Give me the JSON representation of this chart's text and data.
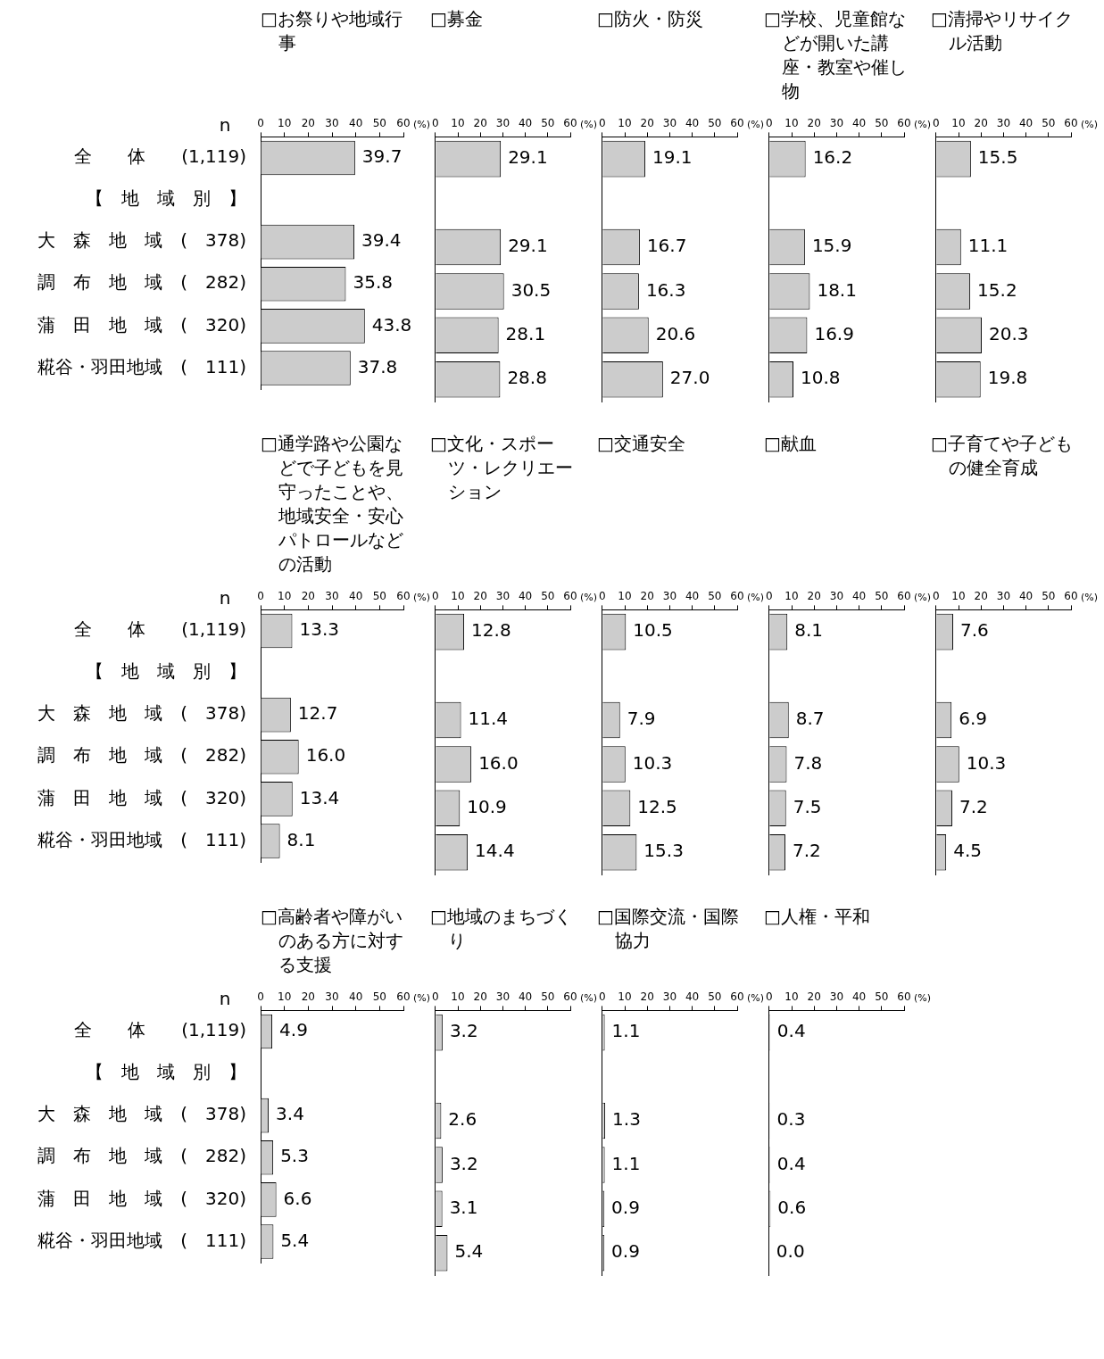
{
  "chart_data": [
    {
      "type": "bar",
      "orientation": "horizontal",
      "title": "□お祭りや地域行事",
      "xlabel": "(%)",
      "annotations": [
        "n"
      ],
      "categories": [
        "全　　体　　(1,119)",
        "【　地　域　別　】",
        "大　森　地　域　(　378)",
        "調　布　地　域　(　282)",
        "蒲　田　地　域　(　320)",
        "糀谷・羽田地域　(　111)"
      ],
      "values": [
        39.7,
        null,
        39.4,
        35.8,
        43.8,
        37.8
      ],
      "value_labels": [
        "39.7",
        null,
        "39.4",
        "35.8",
        "43.8",
        "37.8"
      ],
      "color": "#cccccc",
      "xlim": [
        0,
        60
      ],
      "xticks": [
        0,
        10,
        20,
        30,
        40,
        50,
        60
      ]
    },
    {
      "type": "bar",
      "orientation": "horizontal",
      "title": "□募金",
      "xlabel": "(%)",
      "tick_labels": "x",
      "values": [
        29.1,
        null,
        29.1,
        30.5,
        28.1,
        28.8
      ],
      "value_labels": [
        "29.1",
        null,
        "29.1",
        "30.5",
        "28.1",
        "28.8"
      ],
      "color": "#cccccc",
      "xlim": [
        0,
        60
      ],
      "xticks": [
        0,
        10,
        20,
        30,
        40,
        50,
        60
      ]
    },
    {
      "type": "bar",
      "orientation": "horizontal",
      "title": "□防火・防災",
      "xlabel": "(%)",
      "tick_labels": "x",
      "values": [
        19.1,
        null,
        16.7,
        16.3,
        20.6,
        27.0
      ],
      "value_labels": [
        "19.1",
        null,
        "16.7",
        "16.3",
        "20.6",
        "27.0"
      ],
      "color": "#cccccc",
      "xlim": [
        0,
        60
      ],
      "xticks": [
        0,
        10,
        20,
        30,
        40,
        50,
        60
      ]
    },
    {
      "type": "bar",
      "orientation": "horizontal",
      "title": "□学校、児童館などが開いた講座・教室や催し物",
      "xlabel": "(%)",
      "tick_labels": "x",
      "values": [
        16.2,
        null,
        15.9,
        18.1,
        16.9,
        10.8
      ],
      "value_labels": [
        "16.2",
        null,
        "15.9",
        "18.1",
        "16.9",
        "10.8"
      ],
      "color": "#cccccc",
      "xlim": [
        0,
        60
      ],
      "xticks": [
        0,
        10,
        20,
        30,
        40,
        50,
        60
      ]
    },
    {
      "type": "bar",
      "orientation": "horizontal",
      "title": "□清掃やリサイクル活動",
      "xlabel": "(%)",
      "tick_labels": "x",
      "values": [
        15.5,
        null,
        11.1,
        15.2,
        20.3,
        19.8
      ],
      "value_labels": [
        "15.5",
        null,
        "11.1",
        "15.2",
        "20.3",
        "19.8"
      ],
      "color": "#cccccc",
      "xlim": [
        0,
        60
      ],
      "xticks": [
        0,
        10,
        20,
        30,
        40,
        50,
        60
      ]
    },
    {
      "type": "bar",
      "orientation": "horizontal",
      "title": "□通学路や公園などで子どもを見守ったことや、地域安全・安心パトロールなどの活動",
      "xlabel": "(%)",
      "annotations": [
        "n"
      ],
      "categories": [
        "全　　体　　(1,119)",
        "【　地　域　別　】",
        "大　森　地　域　(　378)",
        "調　布　地　域　(　282)",
        "蒲　田　地　域　(　320)",
        "糀谷・羽田地域　(　111)"
      ],
      "values": [
        13.3,
        null,
        12.7,
        16.0,
        13.4,
        8.1
      ],
      "value_labels": [
        "13.3",
        null,
        "12.7",
        "16.0",
        "13.4",
        "8.1"
      ],
      "color": "#cccccc",
      "xlim": [
        0,
        60
      ],
      "xticks": [
        0,
        10,
        20,
        30,
        40,
        50,
        60
      ]
    },
    {
      "type": "bar",
      "orientation": "horizontal",
      "title": "□文化・スポーツ・レクリエーション",
      "xlabel": "(%)",
      "tick_labels": "x",
      "values": [
        12.8,
        null,
        11.4,
        16.0,
        10.9,
        14.4
      ],
      "value_labels": [
        "12.8",
        null,
        "11.4",
        "16.0",
        "10.9",
        "14.4"
      ],
      "color": "#cccccc",
      "xlim": [
        0,
        60
      ],
      "xticks": [
        0,
        10,
        20,
        30,
        40,
        50,
        60
      ]
    },
    {
      "type": "bar",
      "orientation": "horizontal",
      "title": "□交通安全",
      "xlabel": "(%)",
      "tick_labels": "x",
      "values": [
        10.5,
        null,
        7.9,
        10.3,
        12.5,
        15.3
      ],
      "value_labels": [
        "10.5",
        null,
        "7.9",
        "10.3",
        "12.5",
        "15.3"
      ],
      "color": "#cccccc",
      "xlim": [
        0,
        60
      ],
      "xticks": [
        0,
        10,
        20,
        30,
        40,
        50,
        60
      ]
    },
    {
      "type": "bar",
      "orientation": "horizontal",
      "title": "□献血",
      "xlabel": "(%)",
      "tick_labels": "x",
      "values": [
        8.1,
        null,
        8.7,
        7.8,
        7.5,
        7.2
      ],
      "value_labels": [
        "8.1",
        null,
        "8.7",
        "7.8",
        "7.5",
        "7.2"
      ],
      "color": "#cccccc",
      "xlim": [
        0,
        60
      ],
      "xticks": [
        0,
        10,
        20,
        30,
        40,
        50,
        60
      ]
    },
    {
      "type": "bar",
      "orientation": "horizontal",
      "title": "□子育てや子どもの健全育成",
      "xlabel": "(%)",
      "tick_labels": "x",
      "values": [
        7.6,
        null,
        6.9,
        10.3,
        7.2,
        4.5
      ],
      "value_labels": [
        "7.6",
        null,
        "6.9",
        "10.3",
        "7.2",
        "4.5"
      ],
      "color": "#cccccc",
      "xlim": [
        0,
        60
      ],
      "xticks": [
        0,
        10,
        20,
        30,
        40,
        50,
        60
      ]
    },
    {
      "type": "bar",
      "orientation": "horizontal",
      "title": "□高齢者や障がいのある方に対する支援",
      "xlabel": "(%)",
      "annotations": [
        "n"
      ],
      "categories": [
        "全　　体　　(1,119)",
        "【　地　域　別　】",
        "大　森　地　域　(　378)",
        "調　布　地　域　(　282)",
        "蒲　田　地　域　(　320)",
        "糀谷・羽田地域　(　111)"
      ],
      "values": [
        4.9,
        null,
        3.4,
        5.3,
        6.6,
        5.4
      ],
      "value_labels": [
        "4.9",
        null,
        "3.4",
        "5.3",
        "6.6",
        "5.4"
      ],
      "color": "#cccccc",
      "xlim": [
        0,
        60
      ],
      "xticks": [
        0,
        10,
        20,
        30,
        40,
        50,
        60
      ]
    },
    {
      "type": "bar",
      "orientation": "horizontal",
      "title": "□地域のまちづくり",
      "xlabel": "(%)",
      "tick_labels": "x",
      "values": [
        3.2,
        null,
        2.6,
        3.2,
        3.1,
        5.4
      ],
      "value_labels": [
        "3.2",
        null,
        "2.6",
        "3.2",
        "3.1",
        "5.4"
      ],
      "color": "#cccccc",
      "xlim": [
        0,
        60
      ],
      "xticks": [
        0,
        10,
        20,
        30,
        40,
        50,
        60
      ]
    },
    {
      "type": "bar",
      "orientation": "horizontal",
      "title": "□国際交流・国際協力",
      "xlabel": "(%)",
      "tick_labels": "x",
      "values": [
        1.1,
        null,
        1.3,
        1.1,
        0.9,
        0.9
      ],
      "value_labels": [
        "1.1",
        null,
        "1.3",
        "1.1",
        "0.9",
        "0.9"
      ],
      "color": "#cccccc",
      "xlim": [
        0,
        60
      ],
      "xticks": [
        0,
        10,
        20,
        30,
        40,
        50,
        60
      ]
    },
    {
      "type": "bar",
      "orientation": "horizontal",
      "title": "□人権・平和",
      "xlabel": "(%)",
      "tick_labels": "x",
      "values": [
        0.4,
        null,
        0.3,
        0.4,
        0.6,
        0.0
      ],
      "value_labels": [
        "0.4",
        null,
        "0.3",
        "0.4",
        "0.6",
        "0.0"
      ],
      "color": "#cccccc",
      "xlim": [
        0,
        60
      ],
      "xticks": [
        0,
        10,
        20,
        30,
        40,
        50,
        60
      ]
    }
  ]
}
